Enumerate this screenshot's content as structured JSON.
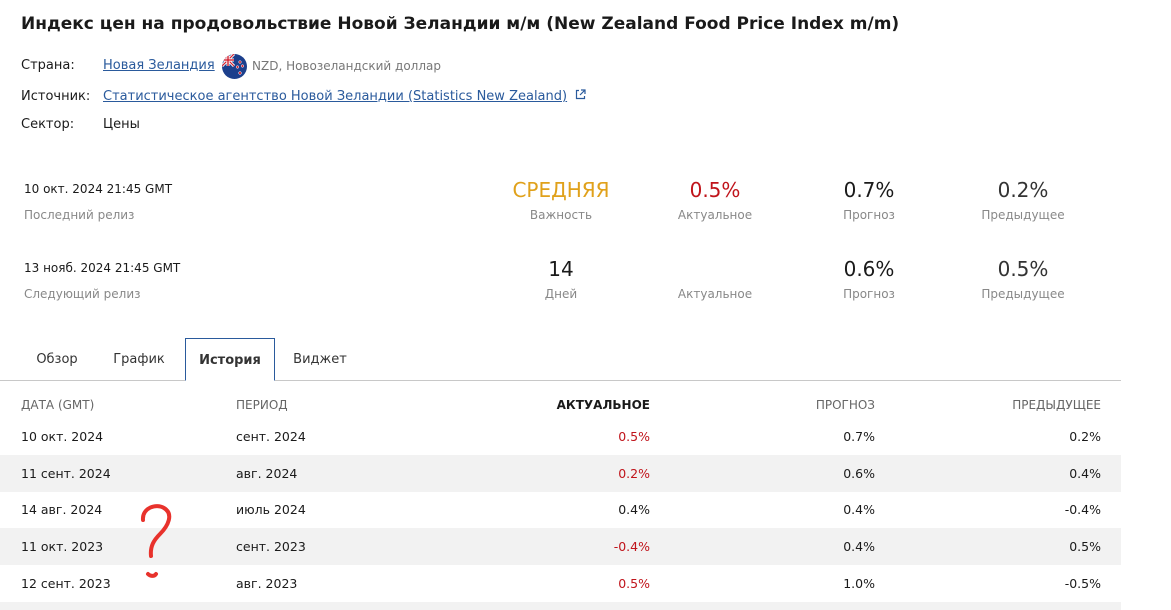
{
  "title": "Индекс цен на продовольствие Новой Зеландии м/м (New Zealand Food Price Index m/m)",
  "meta": {
    "country_label": "Страна:",
    "country_value": "Новая Зеландия",
    "currency": "NZD, Новозеландский доллар",
    "source_label": "Источник:",
    "source_value": "Статистическое агентство Новой Зеландии (Statistics New Zealand)",
    "sector_label": "Сектор:",
    "sector_value": "Цены"
  },
  "last_release": {
    "date": "10 окт. 2024 21:45 GMT",
    "label": "Последний релиз",
    "importance_value": "СРЕДНЯЯ",
    "importance_label": "Важность",
    "actual_value": "0.5%",
    "actual_label": "Актуальное",
    "forecast_value": "0.7%",
    "forecast_label": "Прогноз",
    "previous_value": "0.2%",
    "previous_label": "Предыдущее"
  },
  "next_release": {
    "date": "13 нояб. 2024 21:45 GMT",
    "label": "Следующий релиз",
    "days_value": "14",
    "days_label": "Дней",
    "actual_label": "Актуальное",
    "forecast_value": "0.6%",
    "forecast_label": "Прогноз",
    "previous_value": "0.5%",
    "previous_label": "Предыдущее"
  },
  "tabs": [
    {
      "label": "Обзор",
      "active": false
    },
    {
      "label": "График",
      "active": false
    },
    {
      "label": "История",
      "active": true
    },
    {
      "label": "Виджет",
      "active": false
    }
  ],
  "table": {
    "headers": {
      "date": "ДАТА (GMT)",
      "period": "ПЕРИОД",
      "actual": "АКТУАЛЬНОЕ",
      "forecast": "ПРОГНОЗ",
      "previous": "ПРЕДЫДУЩЕЕ"
    },
    "rows": [
      {
        "date": "10 окт. 2024",
        "period": "сент. 2024",
        "actual": "0.5%",
        "actual_color": "red",
        "forecast": "0.7%",
        "previous": "0.2%"
      },
      {
        "date": "11 сент. 2024",
        "period": "авг. 2024",
        "actual": "0.2%",
        "actual_color": "red",
        "forecast": "0.6%",
        "previous": "0.4%"
      },
      {
        "date": "14 авг. 2024",
        "period": "июль 2024",
        "actual": "0.4%",
        "actual_color": "black",
        "forecast": "0.4%",
        "previous": "-0.4%"
      },
      {
        "date": "11 окт. 2023",
        "period": "сент. 2023",
        "actual": "-0.4%",
        "actual_color": "red",
        "forecast": "0.4%",
        "previous": "0.5%"
      },
      {
        "date": "12 сент. 2023",
        "period": "авг. 2023",
        "actual": "0.5%",
        "actual_color": "red",
        "forecast": "1.0%",
        "previous": "-0.5%"
      }
    ]
  },
  "colors": {
    "importance": "#e0a11b",
    "negative": "#c0141b",
    "link": "#2a5a9c",
    "annotation": "#e8322c"
  }
}
